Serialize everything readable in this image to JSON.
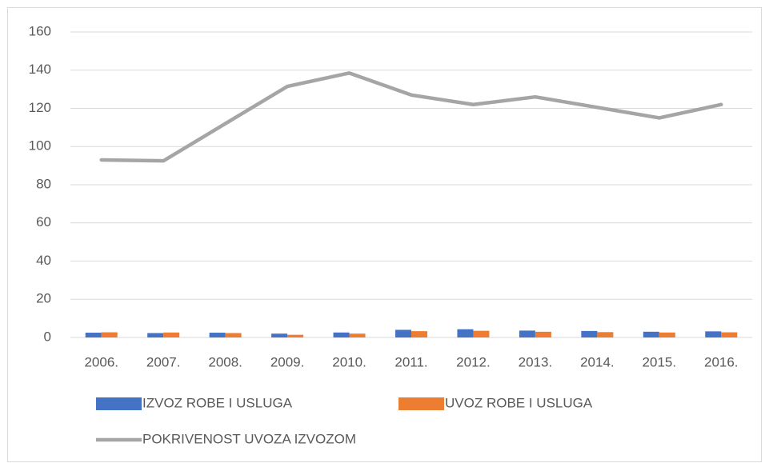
{
  "chart_data": {
    "type": "combo",
    "categories": [
      "2006.",
      "2007.",
      "2008.",
      "2009.",
      "2010.",
      "2011.",
      "2012.",
      "2013.",
      "2014.",
      "2015.",
      "2016."
    ],
    "series": [
      {
        "name": "IZVOZ ROBE I USLUGA",
        "type": "bar",
        "color": "#4472c4",
        "values": [
          2.5,
          2.3,
          2.5,
          2.0,
          2.6,
          4.0,
          4.3,
          3.6,
          3.4,
          3.0,
          3.2
        ]
      },
      {
        "name": "UVOZ ROBE I USLUGA",
        "type": "bar",
        "color": "#ed7d31",
        "values": [
          2.7,
          2.6,
          2.3,
          1.4,
          2.0,
          3.3,
          3.5,
          3.0,
          2.8,
          2.6,
          2.7
        ]
      },
      {
        "name": "POKRIVENOST UVOZA IZVOZOM",
        "type": "line",
        "color": "#a5a5a5",
        "values": [
          93,
          92.5,
          112,
          131.5,
          138.5,
          127,
          122,
          126,
          120.5,
          115,
          122
        ]
      }
    ],
    "ylim": [
      0,
      160
    ],
    "yticks": [
      0,
      20,
      40,
      60,
      80,
      100,
      120,
      140,
      160
    ],
    "grid": true
  }
}
